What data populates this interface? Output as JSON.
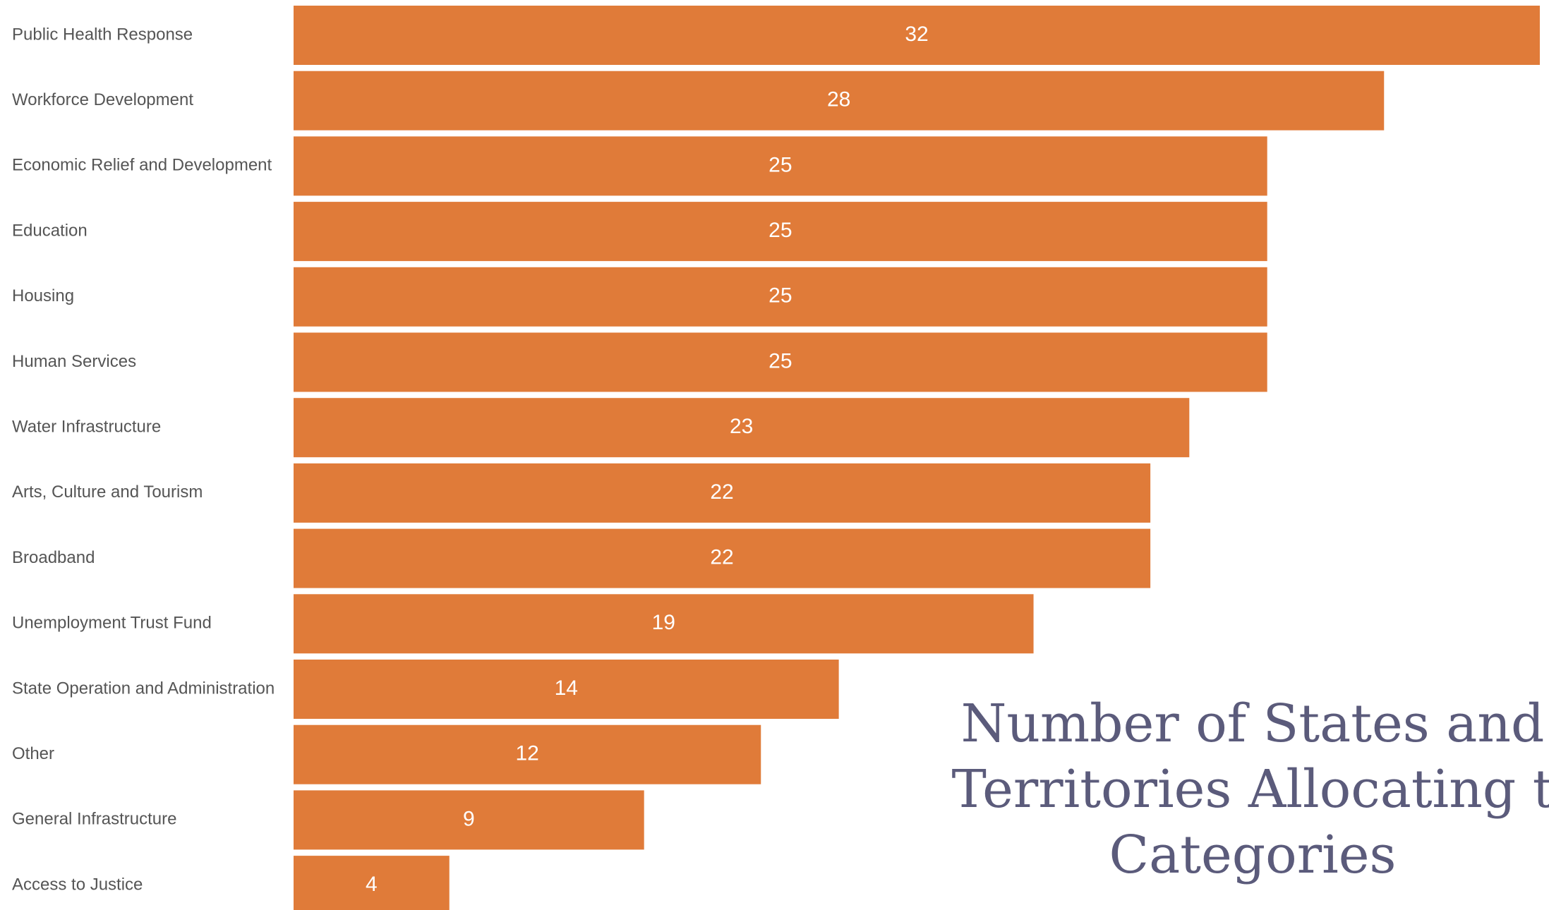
{
  "chart_data": {
    "type": "bar",
    "orientation": "horizontal",
    "categories": [
      "Public Health Response",
      "Workforce Development",
      "Economic Relief and Development",
      "Education",
      "Housing",
      "Human Services",
      "Water Infrastructure",
      "Arts, Culture and Tourism",
      "Broadband",
      "Unemployment Trust Fund",
      "State Operation and Administration",
      "Other",
      "General Infrastructure",
      "Access to Justice"
    ],
    "values": [
      32,
      28,
      25,
      25,
      25,
      25,
      23,
      22,
      22,
      19,
      14,
      12,
      9,
      4
    ],
    "title_lines": [
      "Number of States and",
      "Territories Allocating t",
      "Categories"
    ],
    "xlabel": "",
    "ylabel": "",
    "xlim": [
      0,
      32
    ],
    "grid": false,
    "legend": "none",
    "colors": {
      "bar": "#e07b39",
      "category_text": "#555555",
      "data_label_text": "#ffffff",
      "title_text": "#5b5b7b",
      "background": "#ffffff"
    }
  }
}
